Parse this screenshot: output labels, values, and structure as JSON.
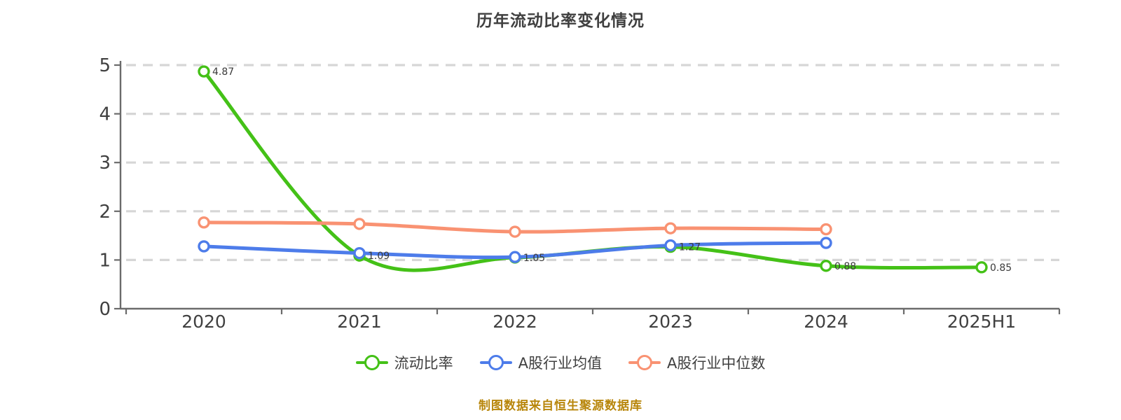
{
  "title": "历年流动比率变化情况",
  "footer": "制图数据来自恒生聚源数据库",
  "colors": {
    "title_text": "#404040",
    "axis_text": "#404040",
    "axis_line": "#6b6b6b",
    "grid_line": "#d6d6d6",
    "point_label_text": "#3a3a3a",
    "footer_text": "#b8860b",
    "background": "#ffffff"
  },
  "chart_data": {
    "type": "line",
    "title": "历年流动比率变化情况",
    "categories": [
      "2020",
      "2021",
      "2022",
      "2023",
      "2024",
      "2025H1"
    ],
    "ylim": [
      0,
      5
    ],
    "yticks": [
      0,
      1,
      2,
      3,
      4,
      5
    ],
    "grid": "horizontal-dashed",
    "legend_position": "bottom",
    "smooth": true,
    "series": [
      {
        "name": "流动比率",
        "color": "#44c117",
        "values": [
          4.87,
          1.09,
          1.05,
          1.27,
          0.88,
          0.85
        ],
        "labels": [
          "4.87",
          "1.09",
          "1.05",
          "1.27",
          "0.88",
          "0.85"
        ]
      },
      {
        "name": "A股行业均值",
        "color": "#4d7cea",
        "values": [
          1.28,
          1.14,
          1.06,
          1.3,
          1.35,
          null
        ],
        "labels": []
      },
      {
        "name": "A股行业中位数",
        "color": "#f99272",
        "values": [
          1.77,
          1.74,
          1.58,
          1.65,
          1.63,
          null
        ],
        "labels": []
      }
    ]
  },
  "legend": {
    "items": [
      {
        "label": "流动比率"
      },
      {
        "label": "A股行业均值"
      },
      {
        "label": "A股行业中位数"
      }
    ]
  }
}
